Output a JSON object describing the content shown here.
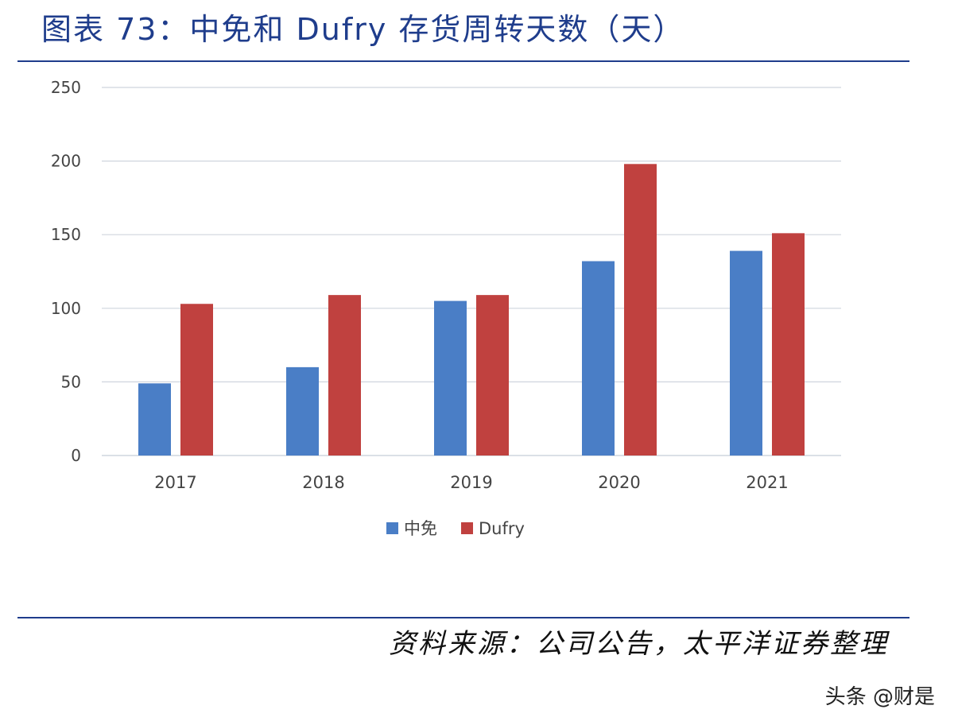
{
  "title": "图表 73：中免和 Dufry 存货周转天数（天）",
  "source": "资料来源：公司公告，太平洋证券整理",
  "watermark": "头条 @财是",
  "colors": {
    "zhongmian": "#4a7ec6",
    "dufry": "#c0413f",
    "title": "#1f3d8c",
    "grid": "#cfd5de",
    "tick": "#444444"
  },
  "chart_data": {
    "type": "bar",
    "categories": [
      "2017",
      "2018",
      "2019",
      "2020",
      "2021"
    ],
    "series": [
      {
        "name": "中免",
        "values": [
          49,
          60,
          105,
          132,
          139
        ]
      },
      {
        "name": "Dufry",
        "values": [
          103,
          109,
          109,
          198,
          151
        ]
      }
    ],
    "ylim": [
      0,
      250
    ],
    "yticks": [
      0,
      50,
      100,
      150,
      200,
      250
    ],
    "grid": true,
    "legend": "bottom"
  }
}
